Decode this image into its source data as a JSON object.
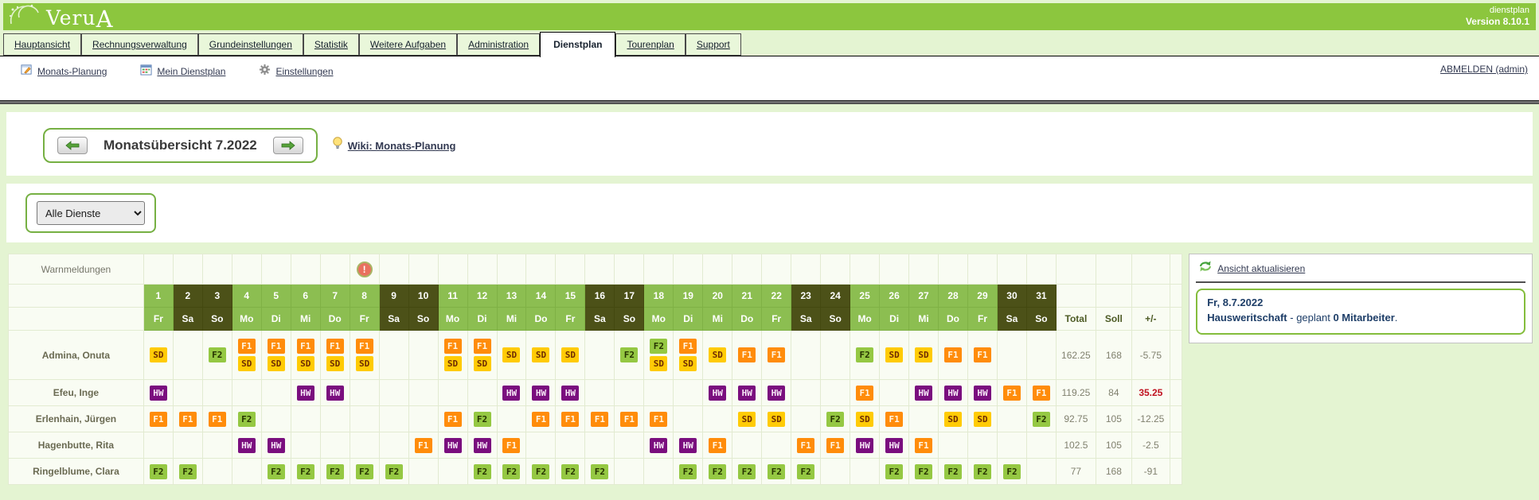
{
  "header": {
    "logo": "Veru",
    "logo_suffix": "A",
    "product": "dienstplan",
    "version": "Version 8.10.1"
  },
  "tabs": [
    {
      "label": "Hauptansicht",
      "active": false
    },
    {
      "label": "Rechnungsverwaltung",
      "active": false
    },
    {
      "label": "Grundeinstellungen",
      "active": false
    },
    {
      "label": "Statistik",
      "active": false
    },
    {
      "label": "Weitere Aufgaben",
      "active": false
    },
    {
      "label": "Administration",
      "active": false
    },
    {
      "label": "Dienstplan",
      "active": true
    },
    {
      "label": "Tourenplan",
      "active": false
    },
    {
      "label": "Support",
      "active": false
    }
  ],
  "subnav": {
    "items": [
      {
        "label": "Monats-Planung",
        "icon": "calendar-edit-icon"
      },
      {
        "label": "Mein Dienstplan",
        "icon": "calendar-icon"
      },
      {
        "label": "Einstellungen",
        "icon": "gear-icon"
      }
    ],
    "logout": "ABMELDEN (admin)"
  },
  "month_nav": {
    "title": "Monatsübersicht 7.2022",
    "wiki": "Wiki: Monats-Planung"
  },
  "filter": {
    "selected_option": "Alle Dienste"
  },
  "roster": {
    "warn_label": "Warnmeldungen",
    "warning_day": 8,
    "col_total": "Total",
    "col_soll": "Soll",
    "col_diff": "+/-",
    "days": [
      {
        "n": 1,
        "w": "Fr"
      },
      {
        "n": 2,
        "w": "Sa"
      },
      {
        "n": 3,
        "w": "So"
      },
      {
        "n": 4,
        "w": "Mo"
      },
      {
        "n": 5,
        "w": "Di"
      },
      {
        "n": 6,
        "w": "Mi"
      },
      {
        "n": 7,
        "w": "Do"
      },
      {
        "n": 8,
        "w": "Fr"
      },
      {
        "n": 9,
        "w": "Sa"
      },
      {
        "n": 10,
        "w": "So"
      },
      {
        "n": 11,
        "w": "Mo"
      },
      {
        "n": 12,
        "w": "Di"
      },
      {
        "n": 13,
        "w": "Mi"
      },
      {
        "n": 14,
        "w": "Do"
      },
      {
        "n": 15,
        "w": "Fr"
      },
      {
        "n": 16,
        "w": "Sa"
      },
      {
        "n": 17,
        "w": "So"
      },
      {
        "n": 18,
        "w": "Mo"
      },
      {
        "n": 19,
        "w": "Di"
      },
      {
        "n": 20,
        "w": "Mi"
      },
      {
        "n": 21,
        "w": "Do"
      },
      {
        "n": 22,
        "w": "Fr"
      },
      {
        "n": 23,
        "w": "Sa"
      },
      {
        "n": 24,
        "w": "So"
      },
      {
        "n": 25,
        "w": "Mo"
      },
      {
        "n": 26,
        "w": "Di"
      },
      {
        "n": 27,
        "w": "Mi"
      },
      {
        "n": 28,
        "w": "Do"
      },
      {
        "n": 29,
        "w": "Fr"
      },
      {
        "n": 30,
        "w": "Sa"
      },
      {
        "n": 31,
        "w": "So"
      }
    ],
    "badge_styles": {
      "SD": {
        "bg": "#ffcb05",
        "fg": "#6d2c03"
      },
      "F1": {
        "bg": "#ff8c0a",
        "fg": "#fff6e6"
      },
      "F2": {
        "bg": "#95c843",
        "fg": "#263300"
      },
      "HW": {
        "bg": "#7a0e7e",
        "fg": "#f7e7f7"
      }
    },
    "status_colors": {
      "absence_pink": "#dd929a",
      "free_gray": "#e3e3e3",
      "weekend_header": "#4c5118",
      "weekday_header": "#8cbe51",
      "accent_green": "#8cc63e"
    },
    "employees": [
      {
        "name": "Admina, Onuta",
        "total": "162.25",
        "soll": "168",
        "diff": "-5.75",
        "diff_red": false,
        "tall": true,
        "cells": [
          "SD",
          "~g",
          "F2~g",
          "F1+SD",
          "F1+SD",
          "F1+SD",
          "F1+SD",
          "F1+SD",
          "~g",
          "~g",
          "F1+SD",
          "F1+SD",
          "SD",
          "SD",
          "SD",
          "~g",
          "F2~g",
          "F2+SD",
          "F1+SD",
          "SD",
          "F1",
          "F1",
          "~g",
          "~g",
          "F2",
          "SD",
          "SD",
          "F1",
          "F1",
          "~g",
          "~g"
        ]
      },
      {
        "name": "Efeu, Inge",
        "total": "119.25",
        "soll": "84",
        "diff": "35.25",
        "diff_red": true,
        "tall": false,
        "cells": [
          "HW",
          "",
          "~g",
          "~p",
          "~p",
          "HW",
          "HW",
          "",
          "",
          "~g",
          "~p",
          "~p",
          "HW",
          "HW",
          "HW",
          "",
          "~g",
          "~p",
          "~p",
          "HW",
          "HW",
          "HW",
          "",
          "~g",
          "F1~p",
          "~p",
          "HW",
          "HW",
          "HW",
          "F1",
          "F1~g"
        ]
      },
      {
        "name": "Erlenhain, Jürgen",
        "total": "92.75",
        "soll": "105",
        "diff": "-12.25",
        "diff_red": false,
        "tall": false,
        "cells": [
          "F1",
          "F1",
          "F1",
          "F2",
          "~p",
          "~p",
          "",
          "",
          "",
          "",
          "F1",
          "F2",
          "~p",
          "F1",
          "F1",
          "F1",
          "F1",
          "F1",
          "~p",
          "~p",
          "SD",
          "SD",
          "",
          "F2",
          "SD",
          "F1~p",
          "~p",
          "SD",
          "SD",
          "",
          "F2"
        ]
      },
      {
        "name": "Hagenbutte, Rita",
        "total": "102.5",
        "soll": "105",
        "diff": "-2.5",
        "diff_red": false,
        "tall": false,
        "cells": [
          "~p",
          "",
          "",
          "HW",
          "HW",
          "",
          "~p",
          "~p",
          "",
          "F1",
          "HW",
          "HW",
          "F1",
          "~p",
          "~p",
          "",
          "",
          "HW",
          "HW",
          "F1",
          "~p",
          "~p",
          "F1",
          "F1",
          "HW",
          "HW",
          "F1",
          "~p",
          "~p",
          "",
          ""
        ]
      },
      {
        "name": "Ringelblume, Clara",
        "total": "77",
        "soll": "168",
        "diff": "-91",
        "diff_red": false,
        "tall": false,
        "cells": [
          "F2",
          "F2",
          "~g",
          "~p",
          "F2",
          "F2",
          "F2",
          "F2",
          "F2",
          "~g",
          "~p",
          "F2",
          "F2",
          "F2",
          "F2",
          "F2",
          "~g",
          "~p",
          "F2",
          "F2",
          "F2",
          "F2",
          "F2",
          "~g",
          "~p",
          "F2",
          "F2",
          "F2",
          "F2",
          "F2",
          "~g"
        ]
      }
    ]
  },
  "side_panel": {
    "refresh_label": "Ansicht aktualisieren",
    "info_date": "Fr, 8.7.2022",
    "info_dept": "Hausweritschaft",
    "info_mid": " - geplant ",
    "info_count": "0 Mitarbeiter",
    "info_suffix": "."
  }
}
